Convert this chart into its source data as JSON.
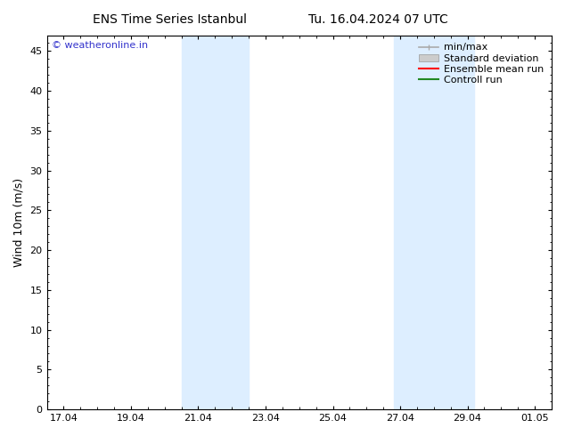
{
  "title": "ENS Time Series Istanbul",
  "title2": "Tu. 16.04.2024 07 UTC",
  "ylabel": "Wind 10m (m/s)",
  "ylim": [
    0,
    47
  ],
  "yticks": [
    0,
    5,
    10,
    15,
    20,
    25,
    30,
    35,
    40,
    45
  ],
  "xtick_labels": [
    "17.04",
    "19.04",
    "21.04",
    "23.04",
    "25.04",
    "27.04",
    "29.04",
    "01.05"
  ],
  "xtick_positions": [
    0,
    2,
    4,
    6,
    8,
    10,
    12,
    14
  ],
  "shaded_bands": [
    {
      "x_start": 3.5,
      "x_end": 5.5
    },
    {
      "x_start": 9.8,
      "x_end": 12.2
    }
  ],
  "shaded_color": "#ddeeff",
  "watermark_text": "© weatheronline.in",
  "watermark_color": "#3333cc",
  "legend_items": [
    {
      "label": "min/max",
      "color": "#aaaaaa",
      "lw": 1.2,
      "style": "minmax"
    },
    {
      "label": "Standard deviation",
      "color": "#cccccc",
      "lw": 6,
      "style": "band"
    },
    {
      "label": "Ensemble mean run",
      "color": "#ff0000",
      "lw": 1.5,
      "style": "line"
    },
    {
      "label": "Controll run",
      "color": "#228822",
      "lw": 1.5,
      "style": "line"
    }
  ],
  "bg_color": "#ffffff",
  "plot_bg_color": "#ffffff",
  "border_color": "#000000",
  "x_range": [
    -0.5,
    14.5
  ],
  "font_family": "DejaVu Sans",
  "title_fontsize": 10,
  "tick_fontsize": 8,
  "ylabel_fontsize": 9,
  "watermark_fontsize": 8,
  "legend_fontsize": 8
}
